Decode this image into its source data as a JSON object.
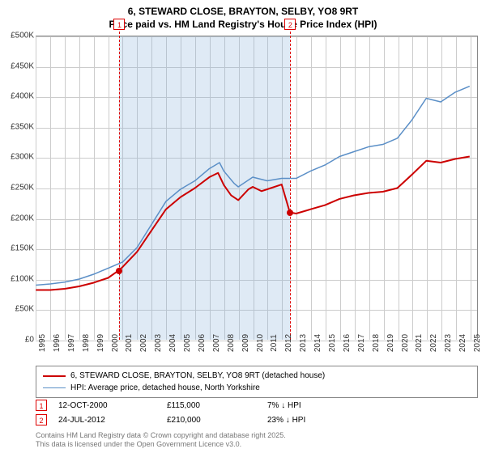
{
  "title_line1": "6, STEWARD CLOSE, BRAYTON, SELBY, YO8 9RT",
  "title_line2": "Price paid vs. HM Land Registry's House Price Index (HPI)",
  "chart": {
    "type": "line",
    "background_color": "#ffffff",
    "grid_color": "#cccccc",
    "x_years": [
      1995,
      1996,
      1997,
      1998,
      1999,
      2000,
      2001,
      2002,
      2003,
      2004,
      2005,
      2006,
      2007,
      2008,
      2009,
      2010,
      2011,
      2012,
      2013,
      2014,
      2015,
      2016,
      2017,
      2018,
      2019,
      2020,
      2021,
      2022,
      2023,
      2024,
      2025
    ],
    "xlim": [
      1995,
      2025.5
    ],
    "ylim": [
      0,
      500000
    ],
    "ytick_step": 50000,
    "y_tick_labels": [
      "£0",
      "£50K",
      "£100K",
      "£150K",
      "£200K",
      "£250K",
      "£300K",
      "£350K",
      "£400K",
      "£450K",
      "£500K"
    ],
    "label_fontsize": 10,
    "series": [
      {
        "name": "6, STEWARD CLOSE, BRAYTON, SELBY, YO8 9RT (detached house)",
        "color": "#cc0000",
        "line_width": 2,
        "data": [
          [
            1995,
            82000
          ],
          [
            1996,
            82000
          ],
          [
            1997,
            84000
          ],
          [
            1998,
            88000
          ],
          [
            1999,
            94000
          ],
          [
            2000,
            102000
          ],
          [
            2000.78,
            115000
          ],
          [
            2001,
            120000
          ],
          [
            2002,
            145000
          ],
          [
            2003,
            180000
          ],
          [
            2004,
            215000
          ],
          [
            2005,
            235000
          ],
          [
            2006,
            250000
          ],
          [
            2007,
            268000
          ],
          [
            2007.6,
            275000
          ],
          [
            2008,
            255000
          ],
          [
            2008.5,
            238000
          ],
          [
            2009,
            230000
          ],
          [
            2009.7,
            248000
          ],
          [
            2010,
            252000
          ],
          [
            2010.6,
            245000
          ],
          [
            2011,
            248000
          ],
          [
            2012,
            256000
          ],
          [
            2012.56,
            210000
          ],
          [
            2013,
            208000
          ],
          [
            2014,
            215000
          ],
          [
            2015,
            222000
          ],
          [
            2016,
            232000
          ],
          [
            2017,
            238000
          ],
          [
            2018,
            242000
          ],
          [
            2019,
            244000
          ],
          [
            2020,
            250000
          ],
          [
            2021,
            272000
          ],
          [
            2022,
            295000
          ],
          [
            2023,
            292000
          ],
          [
            2024,
            298000
          ],
          [
            2025,
            302000
          ]
        ]
      },
      {
        "name": "HPI: Average price, detached house, North Yorkshire",
        "color": "#5b8fc7",
        "line_width": 1.5,
        "data": [
          [
            1995,
            90000
          ],
          [
            1996,
            92000
          ],
          [
            1997,
            95000
          ],
          [
            1998,
            100000
          ],
          [
            1999,
            108000
          ],
          [
            2000,
            118000
          ],
          [
            2001,
            128000
          ],
          [
            2002,
            152000
          ],
          [
            2003,
            190000
          ],
          [
            2004,
            228000
          ],
          [
            2005,
            248000
          ],
          [
            2006,
            262000
          ],
          [
            2007,
            282000
          ],
          [
            2007.7,
            292000
          ],
          [
            2008,
            278000
          ],
          [
            2008.7,
            258000
          ],
          [
            2009,
            252000
          ],
          [
            2010,
            268000
          ],
          [
            2011,
            262000
          ],
          [
            2012,
            266000
          ],
          [
            2013,
            266000
          ],
          [
            2014,
            278000
          ],
          [
            2015,
            288000
          ],
          [
            2016,
            302000
          ],
          [
            2017,
            310000
          ],
          [
            2018,
            318000
          ],
          [
            2019,
            322000
          ],
          [
            2020,
            332000
          ],
          [
            2021,
            362000
          ],
          [
            2022,
            398000
          ],
          [
            2023,
            392000
          ],
          [
            2024,
            408000
          ],
          [
            2025,
            418000
          ]
        ]
      }
    ],
    "sale_band": {
      "start": 2000.78,
      "end": 2012.56,
      "color": "rgba(140,180,220,0.28)"
    },
    "sale_events": [
      {
        "idx": "1",
        "year": 2000.78,
        "price": 115000,
        "date": "12-OCT-2000",
        "price_label": "£115,000",
        "delta": "7% ↓ HPI",
        "dot_color": "#cc0000"
      },
      {
        "idx": "2",
        "year": 2012.56,
        "price": 210000,
        "date": "24-JUL-2012",
        "price_label": "£210,000",
        "delta": "23% ↓ HPI",
        "dot_color": "#cc0000"
      }
    ],
    "vline_color": "#d00"
  },
  "legend_border": "#888888",
  "footer_line1": "Contains HM Land Registry data © Crown copyright and database right 2025.",
  "footer_line2": "This data is licensed under the Open Government Licence v3.0."
}
